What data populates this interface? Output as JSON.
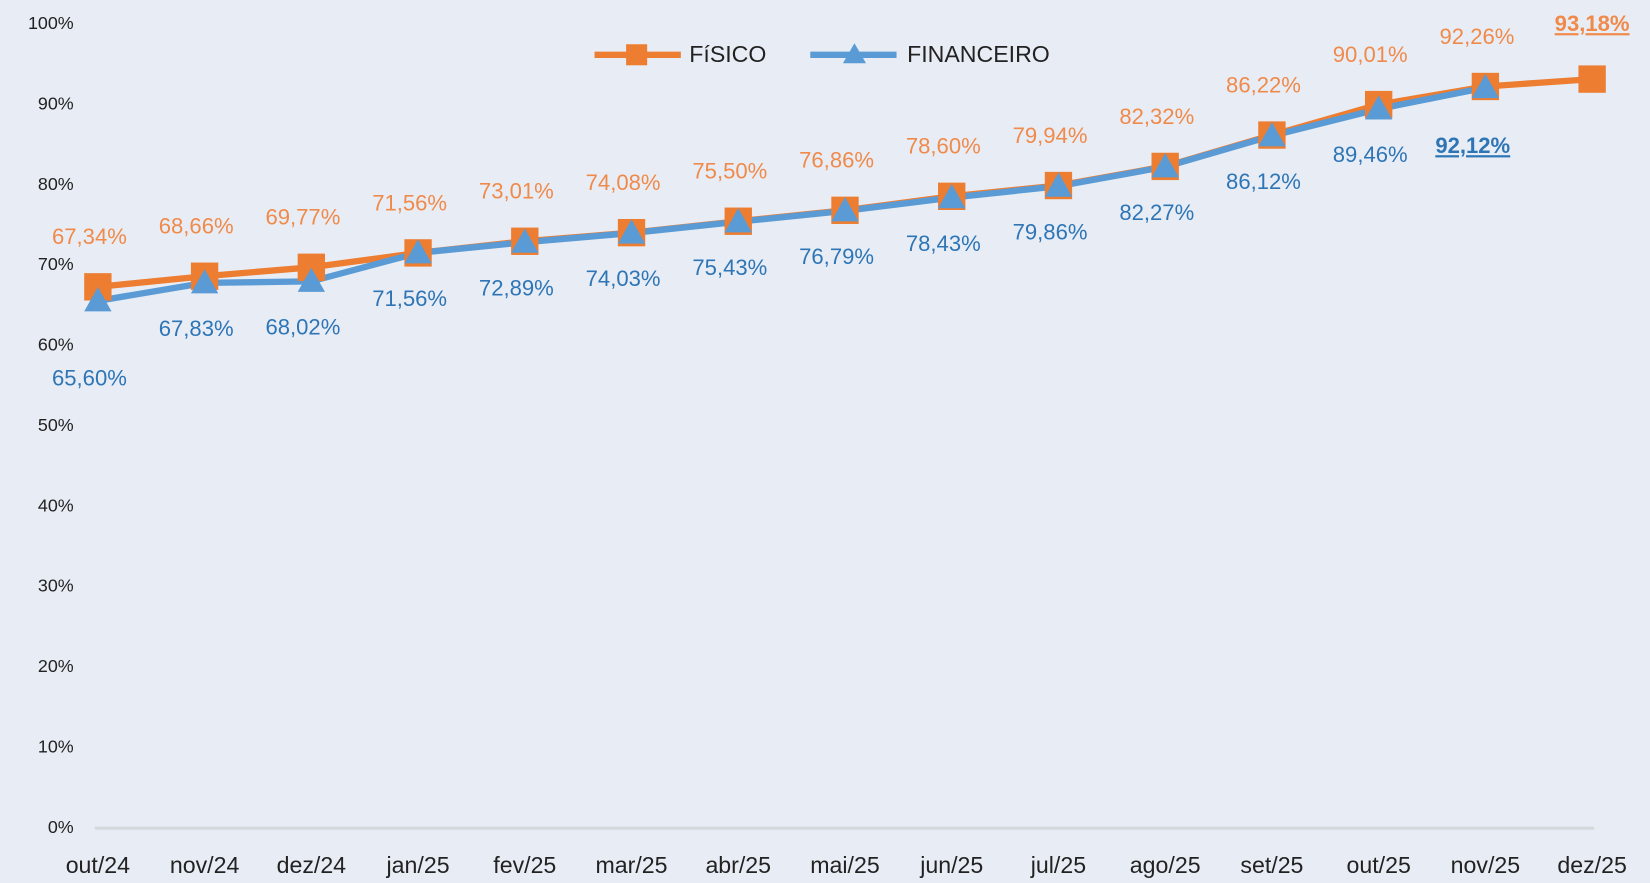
{
  "chart_data": {
    "type": "line",
    "categories": [
      "out/24",
      "nov/24",
      "dez/24",
      "jan/25",
      "fev/25",
      "mar/25",
      "abr/25",
      "mai/25",
      "jun/25",
      "jul/25",
      "ago/25",
      "set/25",
      "out/25",
      "nov/25",
      "dez/25"
    ],
    "series": [
      {
        "name": "FíSICO",
        "color": "#ed7d31",
        "marker": "square",
        "values": [
          67.34,
          68.66,
          69.77,
          71.56,
          73.01,
          74.08,
          75.5,
          76.86,
          78.6,
          79.94,
          82.32,
          86.22,
          90.01,
          92.26,
          93.18
        ],
        "value_labels": [
          "67,34%",
          "68,66%",
          "69,77%",
          "71,56%",
          "73,01%",
          "74,08%",
          "75,50%",
          "76,86%",
          "78,60%",
          "79,94%",
          "82,32%",
          "86,22%",
          "90,01%",
          "92,26%",
          "93,18%"
        ]
      },
      {
        "name": "FINANCEIRO",
        "color": "#5b9bd5",
        "marker": "triangle",
        "values": [
          65.6,
          67.83,
          68.02,
          71.56,
          72.89,
          74.03,
          75.43,
          76.79,
          78.43,
          79.86,
          82.27,
          86.12,
          89.46,
          92.12,
          null
        ],
        "value_labels": [
          "65,60%",
          "67,83%",
          "68,02%",
          "71,56%",
          "72,89%",
          "74,03%",
          "75,43%",
          "76,79%",
          "78,43%",
          "79,86%",
          "82,27%",
          "86,12%",
          "89,46%",
          "92,12%",
          null
        ]
      }
    ],
    "ylim": [
      0,
      100
    ],
    "yticks": [
      {
        "value": 0,
        "label": "0%"
      },
      {
        "value": 10,
        "label": "10%"
      },
      {
        "value": 20,
        "label": "20%"
      },
      {
        "value": 30,
        "label": "30%"
      },
      {
        "value": 40,
        "label": "40%"
      },
      {
        "value": 50,
        "label": "50%"
      },
      {
        "value": 60,
        "label": "60%"
      },
      {
        "value": 70,
        "label": "70%"
      },
      {
        "value": 80,
        "label": "80%"
      },
      {
        "value": 90,
        "label": "90%"
      },
      {
        "value": 100,
        "label": "100%"
      }
    ],
    "legend": "top",
    "grid": false
  }
}
